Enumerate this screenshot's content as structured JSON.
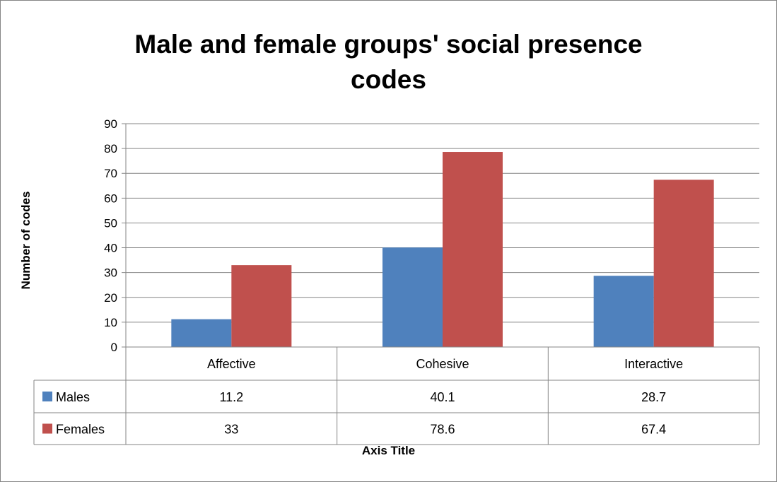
{
  "chart_data": {
    "type": "bar",
    "title": "Male and female groups' social presence codes",
    "title_lines": [
      "Male and female groups' social presence",
      "codes"
    ],
    "xlabel": "Axis Title",
    "ylabel": "Number of codes",
    "categories": [
      "Affective",
      "Cohesive",
      "Interactive"
    ],
    "ylim": [
      0,
      90
    ],
    "yticks": [
      "0",
      "10",
      "20",
      "30",
      "40",
      "50",
      "60",
      "70",
      "80",
      "90"
    ],
    "grid": true,
    "legend": "data-table",
    "series": [
      {
        "name": "Males",
        "color": "#4F81BD",
        "values": [
          11.2,
          40.1,
          28.7
        ],
        "labels": [
          "11.2",
          "40.1",
          "28.7"
        ]
      },
      {
        "name": "Females",
        "color": "#C0504D",
        "values": [
          33,
          78.6,
          67.4
        ],
        "labels": [
          "33",
          "78.6",
          "67.4"
        ]
      }
    ]
  }
}
